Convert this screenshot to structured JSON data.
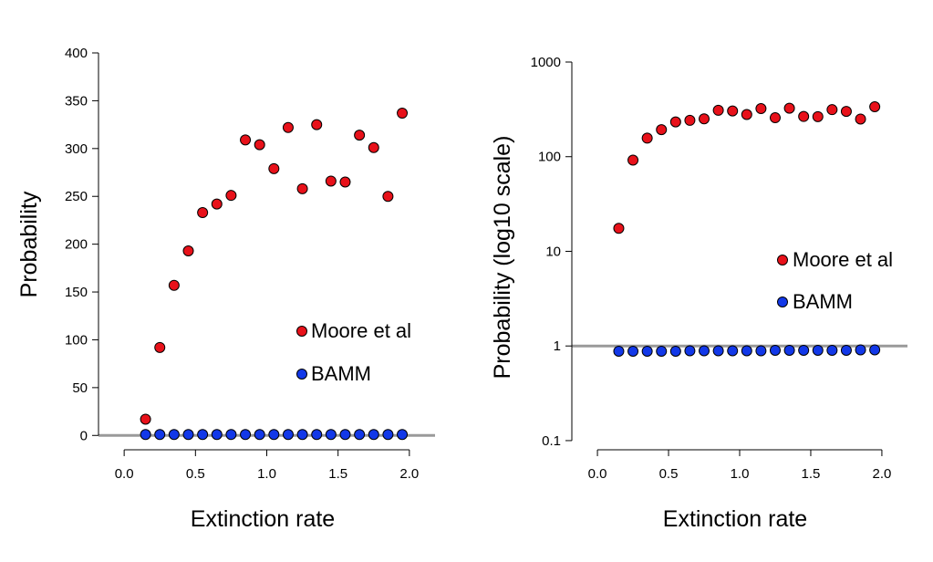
{
  "colors": {
    "moore": "#e8111a",
    "bamm": "#1238e8",
    "refline": "#9a9a9a",
    "axis": "#000000"
  },
  "chart_data": [
    {
      "type": "scatter",
      "xlabel": "Extinction rate",
      "ylabel": "Probability",
      "xlim": [
        -0.18,
        2.18
      ],
      "ylim": [
        -15,
        400
      ],
      "xticks": [
        0.0,
        0.5,
        1.0,
        1.5,
        2.0
      ],
      "xtick_labels": [
        "0.0",
        "0.5",
        "1.0",
        "1.5",
        "2.0"
      ],
      "yticks": [
        0,
        50,
        100,
        150,
        200,
        250,
        300,
        350,
        400
      ],
      "ytick_labels": [
        "0",
        "50",
        "100",
        "150",
        "200",
        "250",
        "300",
        "350",
        "400"
      ],
      "y_scale": "linear",
      "reference_line_y": 0,
      "x": [
        0.15,
        0.25,
        0.35,
        0.45,
        0.55,
        0.65,
        0.75,
        0.85,
        0.95,
        1.05,
        1.15,
        1.25,
        1.35,
        1.45,
        1.55,
        1.65,
        1.75,
        1.85,
        1.95
      ],
      "series": [
        {
          "name": "Moore et al",
          "color": "#e8111a",
          "values": [
            17,
            92,
            157,
            193,
            233,
            242,
            251,
            309,
            304,
            279,
            322,
            258,
            325,
            266,
            265,
            314,
            301,
            250,
            337
          ]
        },
        {
          "name": "BAMM",
          "color": "#1238e8",
          "values": [
            1,
            1,
            1,
            1,
            1,
            1,
            1,
            1,
            1,
            1,
            1,
            1,
            1,
            1,
            1,
            1,
            1,
            1,
            1
          ]
        }
      ],
      "legend_position": "right, middle"
    },
    {
      "type": "scatter",
      "xlabel": "Extinction rate",
      "ylabel": "Probability (log10 scale)",
      "xlim": [
        -0.18,
        2.18
      ],
      "ylim": [
        0.08,
        1000
      ],
      "xticks": [
        0.0,
        0.5,
        1.0,
        1.5,
        2.0
      ],
      "xtick_labels": [
        "0.0",
        "0.5",
        "1.0",
        "1.5",
        "2.0"
      ],
      "yticks": [
        0.1,
        1,
        10,
        100,
        1000
      ],
      "ytick_labels": [
        "0.1",
        "1",
        "10",
        "100",
        "1000"
      ],
      "y_scale": "log10",
      "reference_line_y": 1,
      "x": [
        0.15,
        0.25,
        0.35,
        0.45,
        0.55,
        0.65,
        0.75,
        0.85,
        0.95,
        1.05,
        1.15,
        1.25,
        1.35,
        1.45,
        1.55,
        1.65,
        1.75,
        1.85,
        1.95
      ],
      "series": [
        {
          "name": "Moore et al",
          "color": "#e8111a",
          "values": [
            17.5,
            92,
            157,
            193,
            233,
            242,
            251,
            309,
            304,
            279,
            322,
            258,
            325,
            266,
            265,
            314,
            301,
            250,
            337
          ]
        },
        {
          "name": "BAMM",
          "color": "#1238e8",
          "values": [
            0.88,
            0.88,
            0.88,
            0.88,
            0.88,
            0.89,
            0.89,
            0.89,
            0.89,
            0.89,
            0.89,
            0.9,
            0.9,
            0.9,
            0.9,
            0.9,
            0.9,
            0.91,
            0.91
          ]
        }
      ],
      "legend_position": "right, middle"
    }
  ]
}
